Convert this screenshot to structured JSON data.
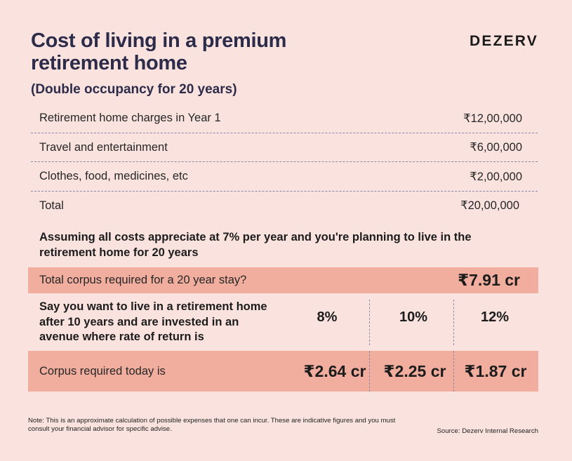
{
  "header": {
    "title": "Cost of living in a premium retirement home",
    "subtitle": "(Double occupancy for 20 years)",
    "brand": "DEZERV"
  },
  "costs": [
    {
      "label": "Retirement home charges in Year 1",
      "value": "₹12,00,000"
    },
    {
      "label": "Travel and entertainment",
      "value": "₹6,00,000"
    },
    {
      "label": "Clothes, food, medicines, etc",
      "value": "₹2,00,000"
    },
    {
      "label": "Total",
      "value": "₹20,00,000"
    }
  ],
  "assumption": "Assuming all costs appreciate at 7% per year and you're planning to live in the retirement home for 20 years",
  "corpus_total": {
    "label": "Total corpus required for a 20 year stay?",
    "value": "₹7.91 cr"
  },
  "scenario": {
    "question": "Say you want to live in a retirement home after 10 years and are invested in an avenue where rate of return is",
    "rates": [
      "8%",
      "10%",
      "12%"
    ]
  },
  "corpus_today": {
    "label": "Corpus required today is",
    "values": [
      "₹2.64 cr",
      "₹2.25 cr",
      "₹1.87 cr"
    ]
  },
  "footer": {
    "note": "Note: This is an approximate calculation of possible expenses that one can incur. These are indicative figures and you must consult your financial advisor for specific advise.",
    "source": "Source: Dezerv Internal Research"
  },
  "colors": {
    "background": "#fae3de",
    "band": "#f1ae9e",
    "title": "#2c2b4a",
    "divider": "#8a89a8"
  }
}
